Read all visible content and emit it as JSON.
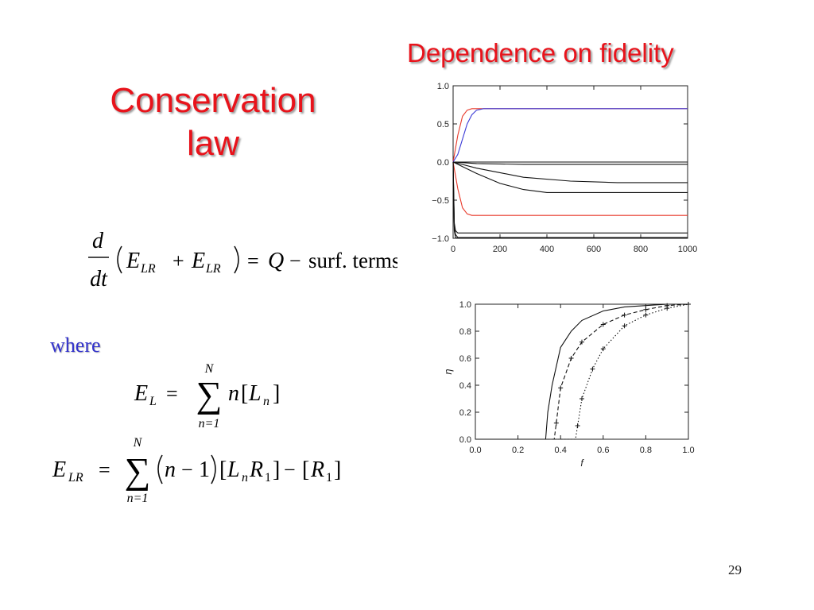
{
  "slide": {
    "title_left_line1": "Conservation",
    "title_left_line2": "law",
    "title_right": "Dependence on fidelity",
    "where_label": "where",
    "page_number": "29"
  },
  "equations": {
    "eq1": {
      "d": "d",
      "dt": "dt",
      "E": "E",
      "sub": "LR",
      "plus": "+",
      "equals": "=",
      "Q": "Q",
      "minus": "−",
      "rhs_text": "surf. terms"
    },
    "eq2": {
      "E": "E",
      "sub": "L",
      "equals": "=",
      "sigma": "∑",
      "upper": "N",
      "lower": "n=1",
      "n": "n",
      "lbr": "[",
      "L": "L",
      "L_sub": "n",
      "rbr": "]"
    },
    "eq3": {
      "E": "E",
      "sub": "LR",
      "equals": "=",
      "sigma": "∑",
      "upper": "N",
      "lower": "n=1",
      "term": "n",
      "minus": "−",
      "one": "1",
      "lbr": "[",
      "L": "L",
      "L_sub": "n",
      "R": "R",
      "R_sub": "1",
      "rbr": "]",
      "R2": "R",
      "R2_sub": "1"
    }
  },
  "chart_data": [
    {
      "type": "line",
      "title": "",
      "xlabel": "",
      "ylabel": "",
      "xlim": [
        0,
        1000
      ],
      "ylim": [
        -1.0,
        1.0
      ],
      "x_ticks": [
        "0",
        "200",
        "400",
        "600",
        "800",
        "1000"
      ],
      "y_ticks": [
        "1.0",
        "0.5",
        "0.0",
        "−0.5",
        "−1.0"
      ],
      "x_tick_values": [
        0,
        200,
        400,
        600,
        800,
        1000
      ],
      "y_tick_values": [
        1.0,
        0.5,
        0.0,
        -0.5,
        -1.0
      ],
      "grid": false,
      "series": [
        {
          "color": "#e8392a",
          "x": [
            0,
            20,
            40,
            60,
            80,
            100,
            150,
            300,
            1000
          ],
          "y": [
            0.0,
            0.35,
            0.6,
            0.68,
            0.7,
            0.7,
            0.7,
            0.7,
            0.7
          ]
        },
        {
          "color": "#3b3bd6",
          "x": [
            0,
            20,
            40,
            60,
            80,
            100,
            130,
            200,
            1000
          ],
          "y": [
            0.0,
            0.1,
            0.3,
            0.5,
            0.62,
            0.68,
            0.7,
            0.7,
            0.7
          ]
        },
        {
          "color": "#e8392a",
          "x": [
            0,
            20,
            40,
            60,
            80,
            100,
            150,
            300,
            1000
          ],
          "y": [
            0.0,
            -0.35,
            -0.6,
            -0.68,
            -0.7,
            -0.7,
            -0.7,
            -0.7,
            -0.7
          ]
        },
        {
          "color": "#111111",
          "x": [
            0,
            100,
            300,
            600,
            1000
          ],
          "y": [
            0.0,
            0.0,
            0.0,
            0.0,
            0.0
          ]
        },
        {
          "color": "#111111",
          "x": [
            0,
            100,
            300,
            600,
            1000
          ],
          "y": [
            0.0,
            -0.02,
            -0.03,
            -0.03,
            -0.03
          ]
        },
        {
          "color": "#111111",
          "x": [
            0,
            100,
            200,
            300,
            500,
            700,
            1000
          ],
          "y": [
            0.0,
            -0.08,
            -0.14,
            -0.2,
            -0.25,
            -0.27,
            -0.27
          ]
        },
        {
          "color": "#111111",
          "x": [
            0,
            100,
            200,
            300,
            400,
            600,
            1000
          ],
          "y": [
            0.0,
            -0.15,
            -0.28,
            -0.36,
            -0.4,
            -0.4,
            -0.4
          ]
        },
        {
          "color": "#111111",
          "x": [
            0,
            5,
            10,
            20,
            50,
            1000
          ],
          "y": [
            0.0,
            -0.8,
            -0.9,
            -0.93,
            -0.93,
            -0.93
          ]
        },
        {
          "color": "#111111",
          "x": [
            0,
            5,
            10,
            20,
            50,
            1000
          ],
          "y": [
            0.0,
            -0.85,
            -0.95,
            -0.99,
            -0.99,
            -0.99
          ]
        },
        {
          "color": "#111111",
          "x": [
            0,
            5,
            10,
            20,
            1000
          ],
          "y": [
            0.0,
            -0.9,
            -0.99,
            -1.0,
            -1.0
          ]
        }
      ]
    },
    {
      "type": "line",
      "title": "",
      "xlabel": "f",
      "ylabel": "η",
      "xlim": [
        0.0,
        1.0
      ],
      "ylim": [
        0.0,
        1.0
      ],
      "x_ticks": [
        "0.0",
        "0.2",
        "0.4",
        "0.6",
        "0.8",
        "1.0"
      ],
      "y_ticks": [
        "0.0",
        "0.2",
        "0.4",
        "0.6",
        "0.8",
        "1.0"
      ],
      "x_tick_values": [
        0.0,
        0.2,
        0.4,
        0.6,
        0.8,
        1.0
      ],
      "y_tick_values": [
        0.0,
        0.2,
        0.4,
        0.6,
        0.8,
        1.0
      ],
      "grid": false,
      "series": [
        {
          "style": "solid",
          "color": "#111111",
          "x": [
            0.0,
            0.33,
            0.34,
            0.36,
            0.4,
            0.45,
            0.5,
            0.6,
            0.7,
            0.8,
            0.9,
            1.0
          ],
          "y": [
            0.0,
            0.0,
            0.2,
            0.4,
            0.68,
            0.8,
            0.88,
            0.95,
            0.98,
            0.99,
            1.0,
            1.0
          ]
        },
        {
          "style": "dashed",
          "color": "#111111",
          "x": [
            0.0,
            0.37,
            0.38,
            0.4,
            0.45,
            0.5,
            0.6,
            0.7,
            0.8,
            0.9,
            1.0
          ],
          "y": [
            0.0,
            0.0,
            0.12,
            0.38,
            0.6,
            0.72,
            0.85,
            0.92,
            0.96,
            0.99,
            1.0
          ]
        },
        {
          "style": "dotted",
          "color": "#111111",
          "x": [
            0.0,
            0.47,
            0.48,
            0.5,
            0.55,
            0.6,
            0.7,
            0.8,
            0.9,
            1.0
          ],
          "y": [
            0.0,
            0.0,
            0.1,
            0.3,
            0.52,
            0.67,
            0.84,
            0.92,
            0.97,
            1.0
          ]
        }
      ]
    }
  ]
}
